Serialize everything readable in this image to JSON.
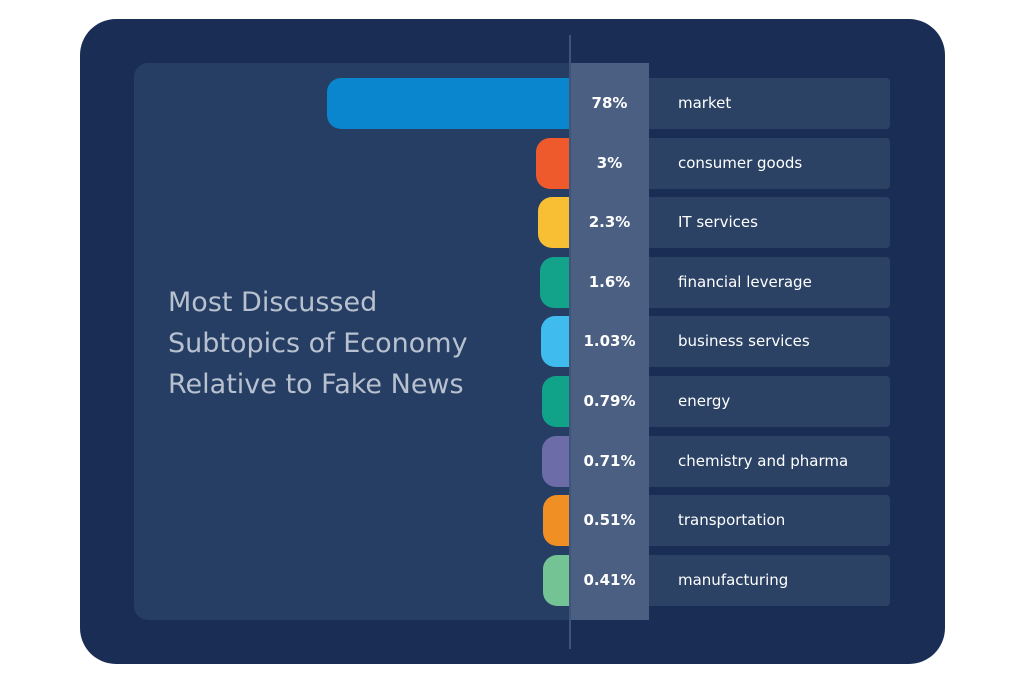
{
  "title_lines": [
    "Most Discussed",
    "Subtopics of Economy",
    "Relative to Fake News"
  ],
  "chart_data": {
    "type": "bar",
    "orientation": "horizontal",
    "title": "Most Discussed Subtopics of Economy Relative to Fake News",
    "categories": [
      "market",
      "consumer goods",
      "IT services",
      "financial leverage",
      "business services",
      "energy",
      "chemistry and pharma",
      "transportation",
      "manufacturing"
    ],
    "values": [
      78,
      3,
      2.3,
      1.6,
      1.03,
      0.79,
      0.71,
      0.51,
      0.41
    ],
    "value_labels": [
      "78%",
      "3%",
      "2.3%",
      "1.6%",
      "1.03%",
      "0.79%",
      "0.71%",
      "0.51%",
      "0.41%"
    ],
    "colors": [
      "#0a86cf",
      "#ef5a2d",
      "#f8bf34",
      "#13a38b",
      "#3fbbee",
      "#11a28a",
      "#6b6ca8",
      "#ef8f24",
      "#73c394"
    ],
    "unit": "%",
    "grid": false,
    "legend": "none"
  }
}
